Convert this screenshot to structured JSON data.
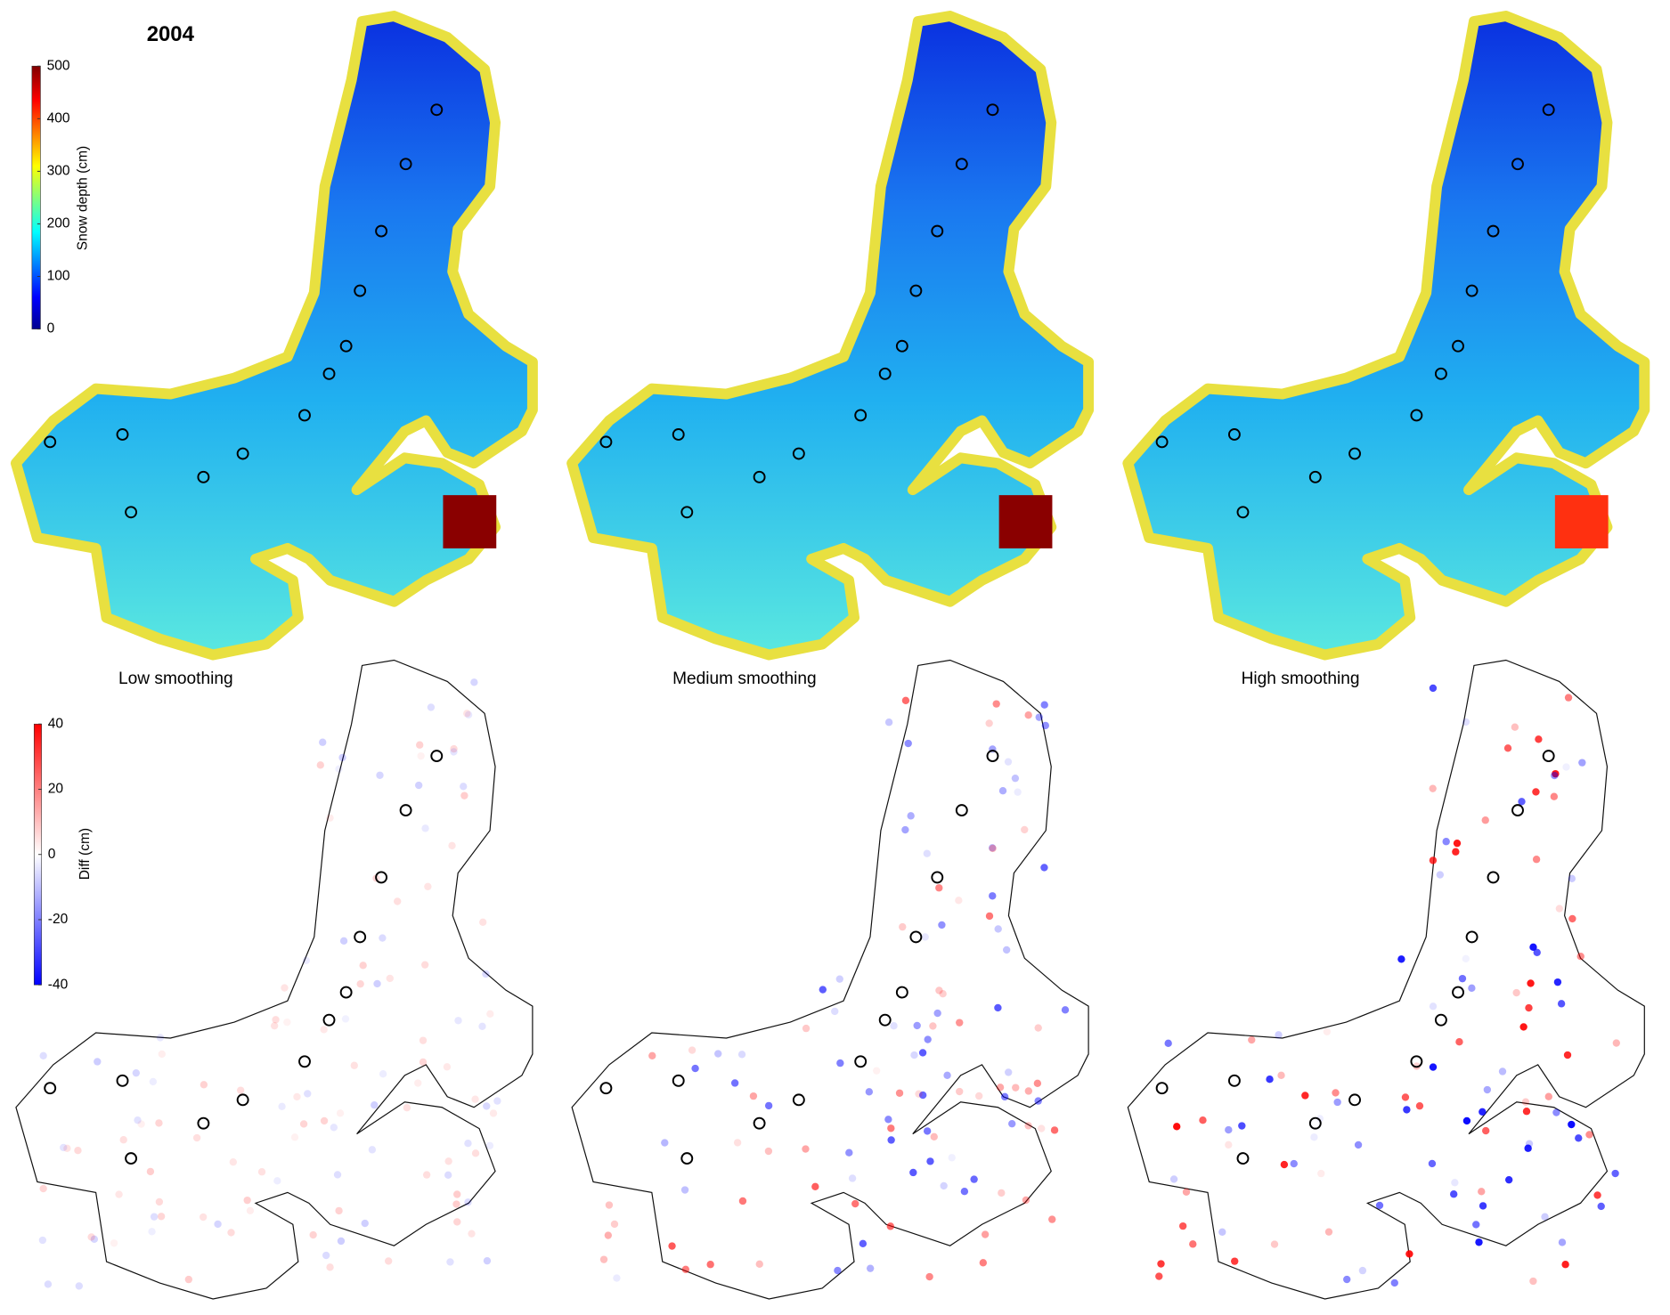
{
  "figure": {
    "title": "2004",
    "colorbars": [
      {
        "label": "Snow depth (cm)",
        "lim": [
          0,
          500
        ],
        "ticks": [
          0,
          100,
          200,
          300,
          400,
          500
        ]
      },
      {
        "label": "Diff (cm)",
        "lim": [
          -40,
          40
        ],
        "ticks": [
          -40,
          -20,
          0,
          20,
          40
        ]
      }
    ],
    "panels": [
      "Low smoothing",
      "Medium smoothing",
      "High smoothing"
    ]
  }
}
